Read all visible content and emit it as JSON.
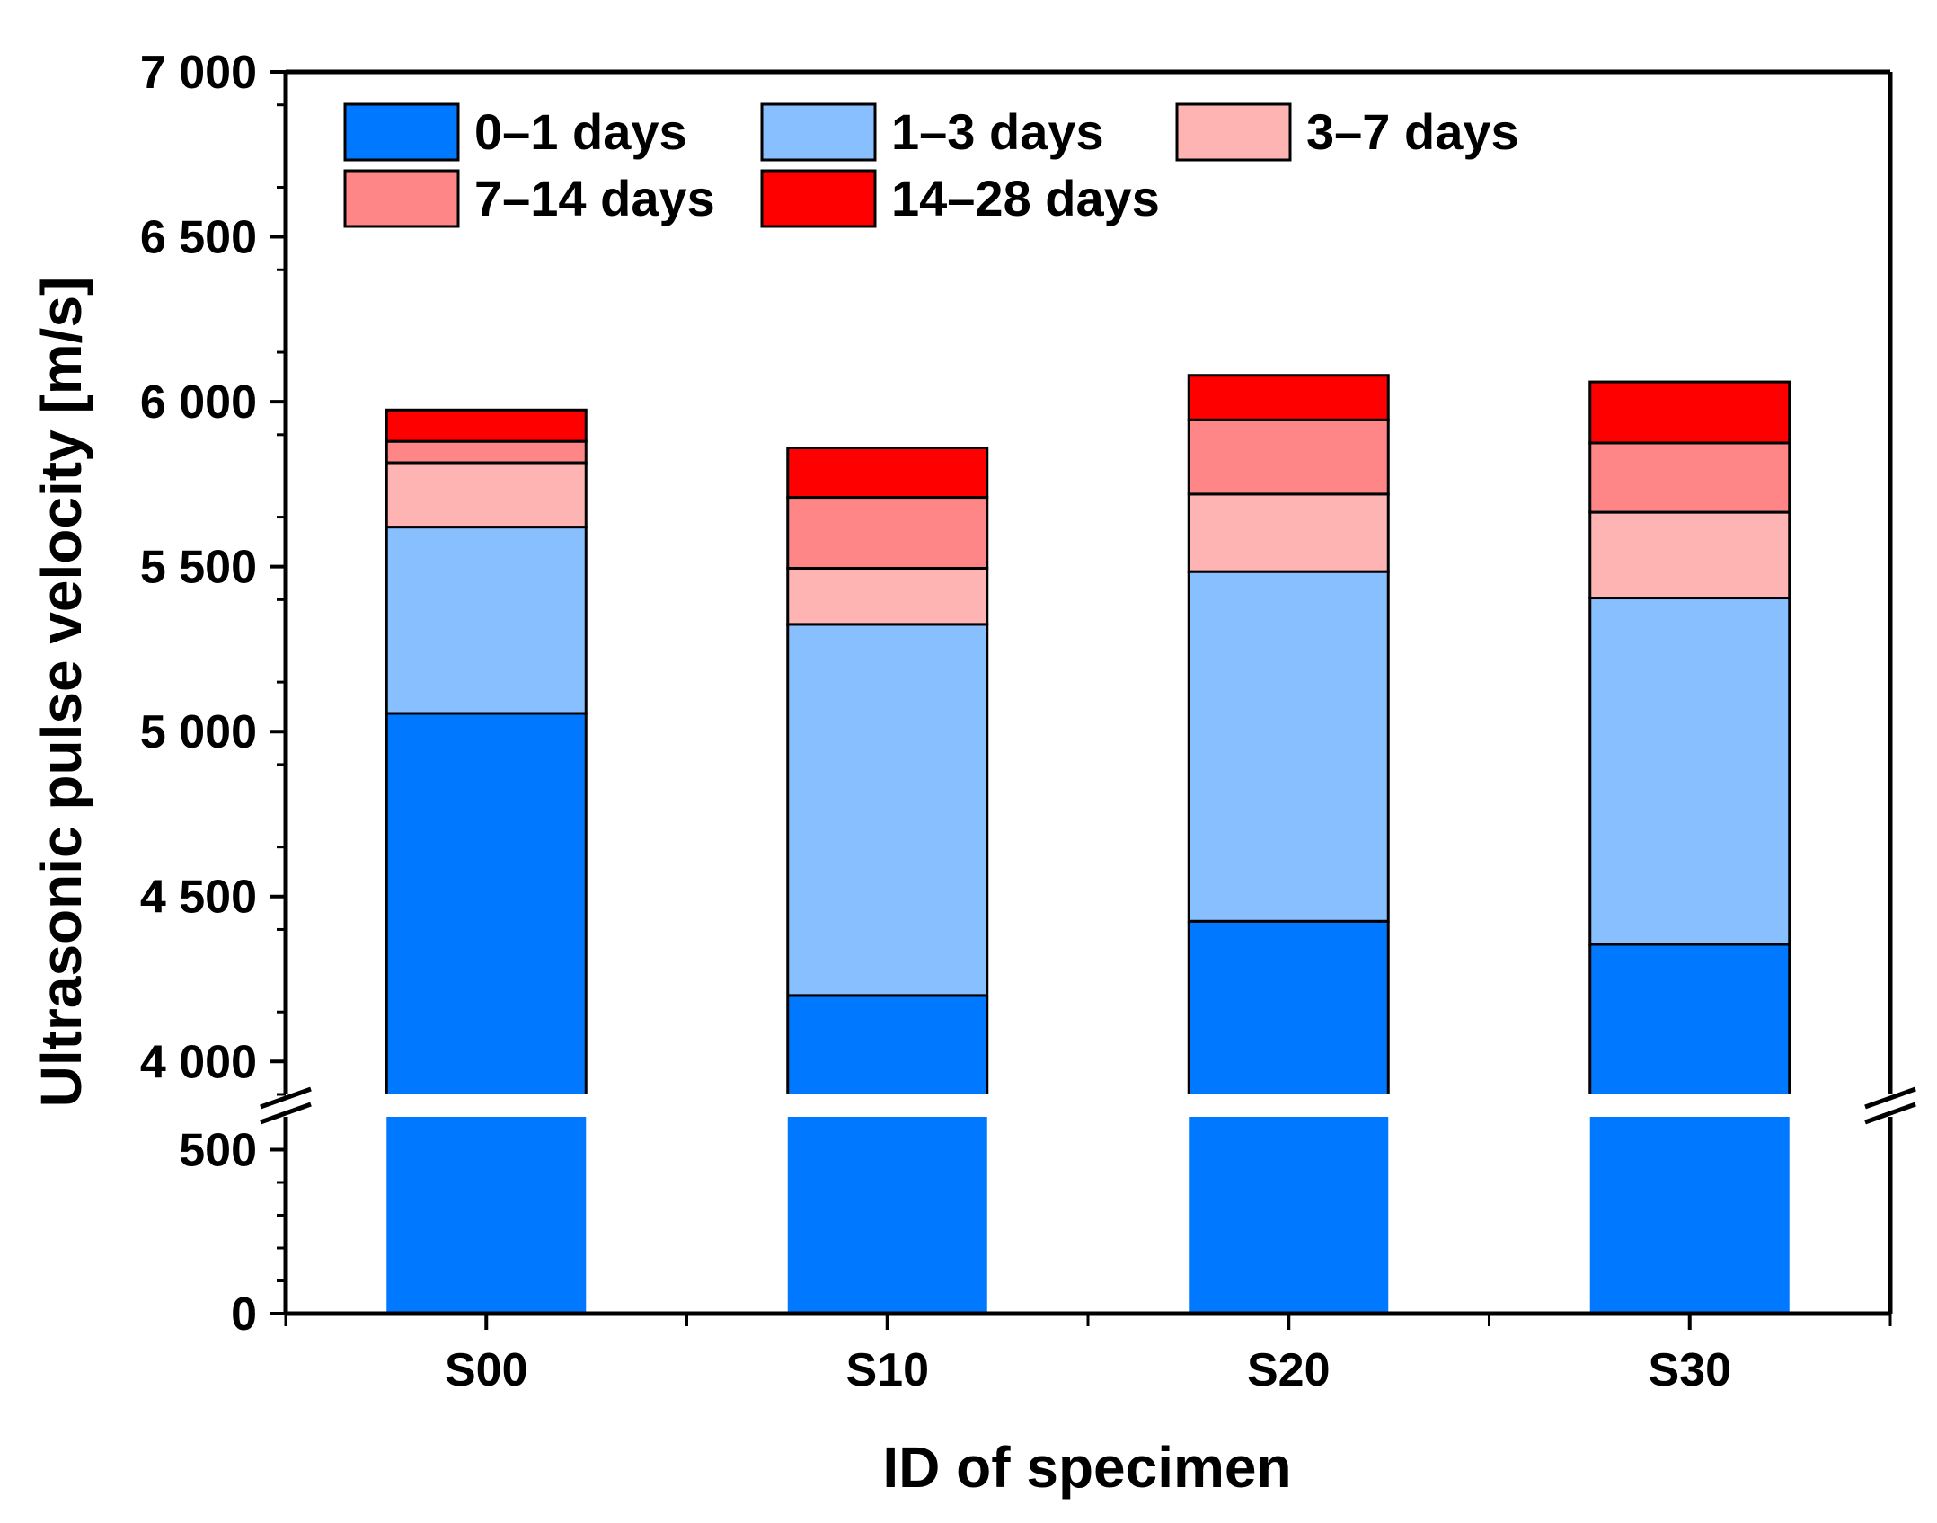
{
  "chart_data": {
    "type": "bar",
    "stacked": true,
    "xlabel": "ID of specimen",
    "ylabel": "Ultrasonic pulse velocity [m/s]",
    "categories": [
      "S00",
      "S10",
      "S20",
      "S30"
    ],
    "series": [
      {
        "name": "0–1 days",
        "color": "#0078FF",
        "values": [
          5055,
          4200,
          4425,
          4355
        ]
      },
      {
        "name": "1–3 days",
        "color": "#88BFFF",
        "values": [
          565,
          1125,
          1060,
          1050
        ]
      },
      {
        "name": "3–7 days",
        "color": "#FFB4B4",
        "values": [
          195,
          170,
          235,
          260
        ]
      },
      {
        "name": "7–14 days",
        "color": "#FF8686",
        "values": [
          65,
          215,
          225,
          210
        ]
      },
      {
        "name": "14–28 days",
        "color": "#FF0000",
        "values": [
          95,
          150,
          135,
          185
        ]
      }
    ],
    "y_axis_break": {
      "lower_range": [
        0,
        600
      ],
      "upper_range": [
        3900,
        7000
      ]
    },
    "y_ticks_lower": [
      {
        "value": 0,
        "label": "0"
      },
      {
        "value": 500,
        "label": "500"
      }
    ],
    "y_ticks_upper": [
      {
        "value": 4000,
        "label": "4 000"
      },
      {
        "value": 4500,
        "label": "4 500"
      },
      {
        "value": 5000,
        "label": "5 000"
      },
      {
        "value": 5500,
        "label": "5 500"
      },
      {
        "value": 6000,
        "label": "6 000"
      },
      {
        "value": 6500,
        "label": "6 500"
      },
      {
        "value": 7000,
        "label": "7 000"
      }
    ],
    "legend_position": "top-left"
  }
}
